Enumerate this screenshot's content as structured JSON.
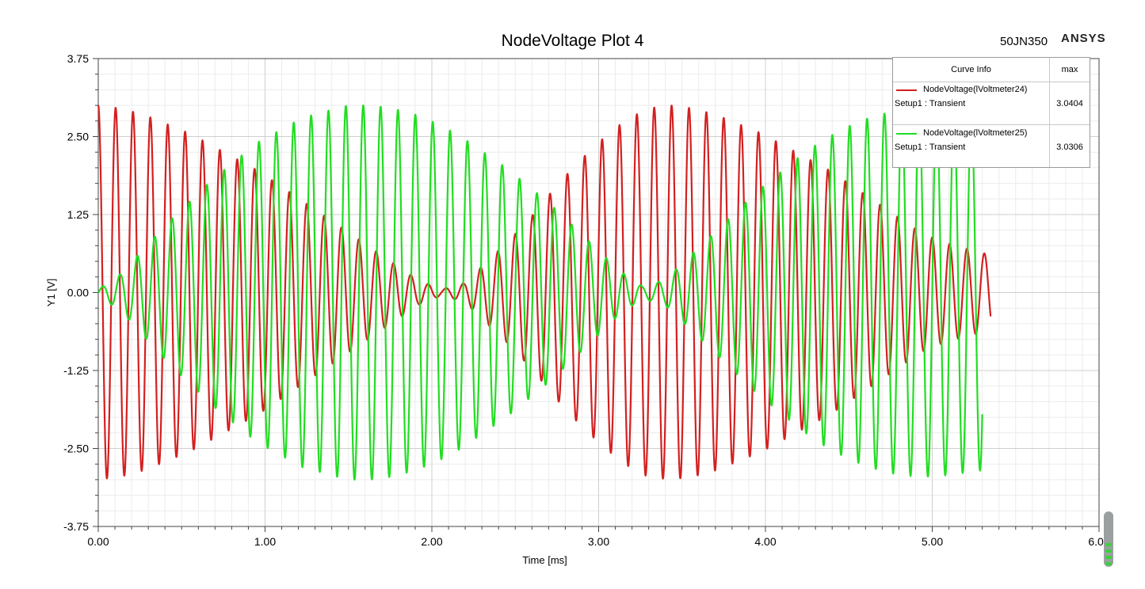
{
  "header": {
    "title": "NodeVoltage Plot 4",
    "design": "50JN350",
    "brand": "ANSYS"
  },
  "legend": {
    "col_info": "Curve Info",
    "col_max": "max",
    "entries": [
      {
        "name": "NodeVoltage(lVoltmeter24)",
        "setup": "Setup1 : Transient",
        "max": "3.0404",
        "color": "#d32020"
      },
      {
        "name": "NodeVoltage(lVoltmeter25)",
        "setup": "Setup1 : Transient",
        "max": "3.0306",
        "color": "#22dd22"
      }
    ]
  },
  "chart_data": {
    "type": "line",
    "title": "NodeVoltage Plot 4",
    "xlabel": "Time [ms]",
    "ylabel": "Y1 [V]",
    "xlim": [
      0,
      6
    ],
    "ylim": [
      -3.75,
      3.75
    ],
    "x_ticks": [
      "0.00",
      "1.00",
      "2.00",
      "3.00",
      "4.00",
      "5.00",
      "6.00"
    ],
    "y_ticks": [
      "3.75",
      "2.50",
      "1.25",
      "0.00",
      "-1.25",
      "-2.50",
      "-3.75"
    ],
    "grid": true,
    "legend_position": "top-right",
    "series": [
      {
        "name": "NodeVoltage(lVoltmeter24)",
        "color": "#d32020",
        "x_range": [
          0,
          5.35
        ],
        "carrier_frequency_kHz": 9.6,
        "amplitude_peaks": [
          3.0,
          2.95,
          2.85,
          2.7,
          2.55,
          2.35,
          2.15,
          1.95,
          1.7,
          1.45,
          1.2,
          0.95,
          0.7,
          0.45,
          0.2,
          0.05,
          0.15,
          0.5,
          0.85,
          1.25,
          1.7,
          2.1,
          2.45,
          2.75,
          2.95,
          3.0,
          2.95,
          2.85,
          2.7,
          2.55,
          2.35,
          2.15,
          1.95,
          1.7,
          1.45,
          1.2,
          0.95,
          0.8,
          0.7,
          0.6
        ],
        "max": 3.0404
      },
      {
        "name": "NodeVoltage(lVoltmeter25)",
        "color": "#22dd22",
        "x_range": [
          0,
          5.3
        ],
        "carrier_frequency_kHz": 9.6,
        "amplitude_peaks": [
          0.05,
          0.3,
          0.7,
          1.1,
          1.45,
          1.8,
          2.1,
          2.4,
          2.6,
          2.8,
          2.9,
          3.0,
          3.0,
          2.95,
          2.85,
          2.7,
          2.5,
          2.25,
          2.0,
          1.7,
          1.4,
          1.05,
          0.7,
          0.35,
          0.1,
          0.2,
          0.55,
          0.9,
          1.25,
          1.6,
          1.9,
          2.2,
          2.45,
          2.65,
          2.8,
          2.9,
          2.95,
          2.95,
          2.9,
          2.85
        ],
        "max": 3.0306
      }
    ]
  }
}
